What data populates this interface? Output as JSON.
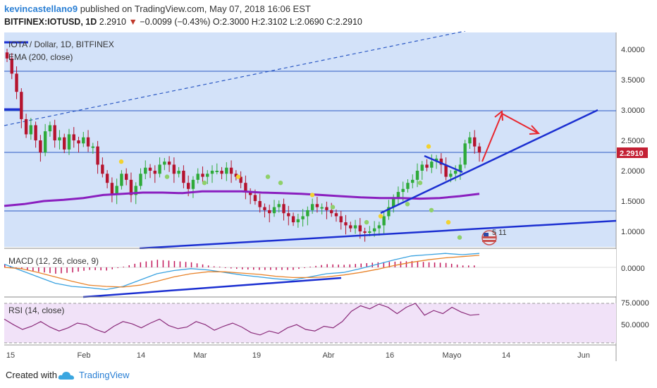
{
  "header": {
    "user": "kevincastellano9",
    "published": "published on TradingView.com, May 07, 2018 16:06 EST",
    "symbol": "BITFINEX:IOTUSD, 1D",
    "last": "2.2910",
    "arrow": "▼",
    "change": "−0.0099 (−0.43%)",
    "ohlc": "O:2.3000 H:2.3102 L:2.0690 C:2.2910"
  },
  "chart_data": [
    {
      "type": "candlestick",
      "title": "IOTA / Dollar, 1D, BITFINEX",
      "indicator": "EMA (200, close)",
      "ylim": [
        0.7,
        4.2
      ],
      "y_ticks": [
        "4.0000",
        "3.5000",
        "3.0000",
        "2.5000",
        "2.0000",
        "1.5000",
        "1.0000"
      ],
      "last_price_label": "2.2910",
      "horizontal_levels": [
        3.65,
        2.98,
        2.3,
        1.33
      ],
      "x_tick_labels": [
        "15",
        "Feb",
        "14",
        "Mar",
        "19",
        "Abr",
        "16",
        "Mayo",
        "14",
        "Jun"
      ],
      "close_series": [
        3.85,
        3.6,
        3.3,
        2.85,
        2.6,
        2.75,
        2.5,
        2.3,
        2.65,
        2.75,
        2.5,
        2.55,
        2.35,
        2.6,
        2.5,
        2.45,
        2.55,
        2.4,
        2.4,
        2.1,
        1.95,
        1.8,
        1.6,
        1.75,
        1.95,
        1.85,
        1.6,
        1.75,
        1.95,
        2.05,
        2.0,
        1.95,
        2.1,
        2.15,
        2.1,
        1.95,
        2.0,
        1.8,
        1.7,
        1.85,
        1.95,
        1.9,
        1.95,
        2.0,
        2.0,
        1.95,
        2.05,
        1.95,
        1.9,
        1.8,
        1.65,
        1.6,
        1.5,
        1.4,
        1.35,
        1.3,
        1.4,
        1.45,
        1.3,
        1.25,
        1.15,
        1.2,
        1.25,
        1.35,
        1.45,
        1.4,
        1.4,
        1.35,
        1.3,
        1.25,
        1.15,
        1.1,
        1.05,
        1.1,
        1.0,
        0.98,
        1.0,
        1.05,
        1.1,
        1.25,
        1.4,
        1.55,
        1.65,
        1.7,
        1.8,
        1.85,
        2.0,
        2.1,
        2.05,
        2.15,
        2.2,
        2.1,
        1.9,
        1.95,
        2.0,
        2.1,
        2.45,
        2.55,
        2.4,
        2.3
      ],
      "ema_200": [
        1.42,
        1.45,
        1.5,
        1.52,
        1.55,
        1.6,
        1.62,
        1.64,
        1.64,
        1.63,
        1.66,
        1.66,
        1.66,
        1.64,
        1.63,
        1.62,
        1.6,
        1.58,
        1.56,
        1.55,
        1.55,
        1.54,
        1.55,
        1.58,
        1.62
      ],
      "pattern_points": [
        2.15,
        1.9,
        1.8,
        1.9,
        1.9,
        1.8,
        1.6,
        1.4,
        1.15,
        1.25,
        1.45,
        1.35,
        1.15,
        0.9,
        1.8,
        2.4
      ]
    },
    {
      "type": "line",
      "title": "MACD (12, 26, close, 9)",
      "y_ticks": [
        "0.0000"
      ],
      "macd": [
        0.05,
        -0.05,
        -0.15,
        -0.25,
        -0.3,
        -0.32,
        -0.35,
        -0.3,
        -0.2,
        -0.1,
        -0.05,
        -0.02,
        -0.04,
        -0.08,
        -0.12,
        -0.15,
        -0.18,
        -0.2,
        -0.15,
        -0.1,
        -0.08,
        -0.02,
        0.05,
        0.12,
        0.18,
        0.2,
        0.22,
        0.2,
        0.22
      ],
      "signal": [
        0.0,
        -0.02,
        -0.08,
        -0.15,
        -0.22,
        -0.28,
        -0.3,
        -0.31,
        -0.28,
        -0.22,
        -0.15,
        -0.1,
        -0.07,
        -0.07,
        -0.09,
        -0.11,
        -0.14,
        -0.16,
        -0.16,
        -0.15,
        -0.12,
        -0.08,
        -0.03,
        0.03,
        0.08,
        0.12,
        0.15,
        0.17,
        0.19
      ]
    },
    {
      "type": "line",
      "title": "RSI (14, close)",
      "y_ticks": [
        "75.0000",
        "50.0000"
      ],
      "ylim": [
        25,
        80
      ],
      "rsi": [
        55,
        48,
        42,
        46,
        52,
        45,
        40,
        44,
        50,
        48,
        42,
        38,
        46,
        52,
        49,
        44,
        50,
        55,
        47,
        43,
        45,
        52,
        48,
        41,
        46,
        50,
        45,
        38,
        35,
        40,
        37,
        44,
        48,
        42,
        40,
        46,
        44,
        52,
        65,
        72,
        68,
        74,
        70,
        62,
        70,
        75,
        60,
        66,
        62,
        70,
        64,
        60,
        61
      ]
    }
  ],
  "footer": {
    "created_with": "Created with",
    "brand": "TradingView"
  },
  "marker": "5 11",
  "colors": {
    "up": "#2eaa3a",
    "down": "#b5132e",
    "ema": "#8a1fbf",
    "trend": "#1b2fd1",
    "forecast": "#e8262e",
    "panel_bg": "#d3e2f9",
    "rsi_bg": "#f1e2f8"
  }
}
